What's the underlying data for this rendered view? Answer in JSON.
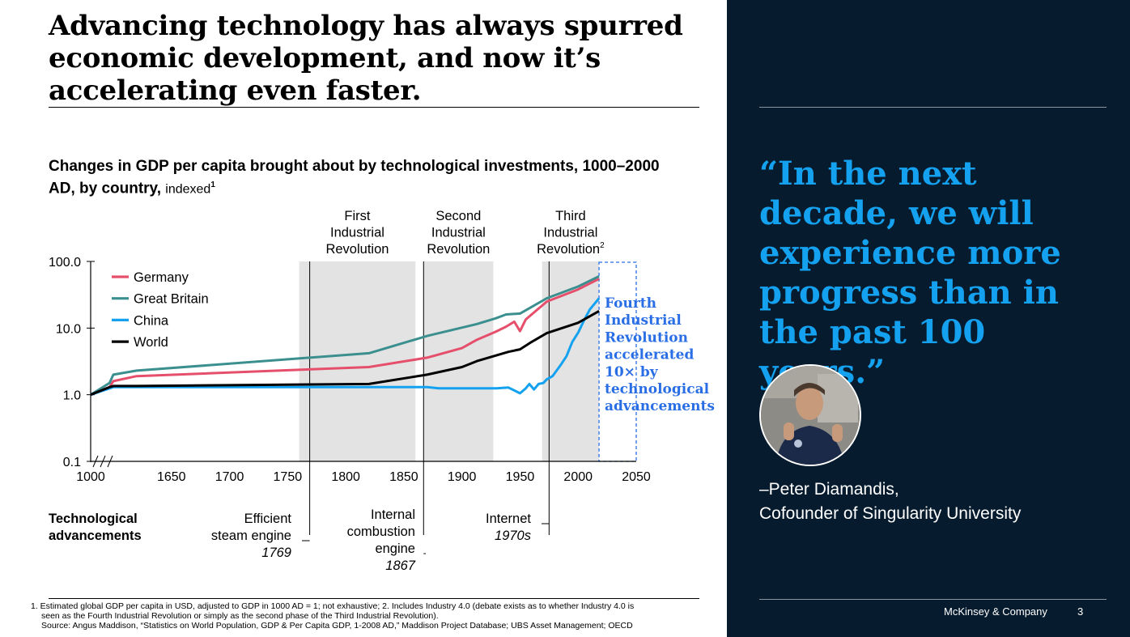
{
  "headline": "Advancing technology has always spurred economic development, and now it’s accelerating even faster.",
  "chart_data": {
    "type": "line",
    "title": "Changes in GDP per capita brought about by technological investments, 1000–2000 AD, by country,",
    "title_suffix": "indexed",
    "title_footnote": "1",
    "yscale": "log",
    "ylim": [
      0.1,
      100
    ],
    "y_ticks": [
      "100.0",
      "10.0",
      "1.0",
      "0.1"
    ],
    "x_ticks": [
      "1000",
      "1650",
      "1700",
      "1750",
      "1800",
      "1850",
      "1900",
      "1950",
      "2000",
      "2050"
    ],
    "axis_break": "1000–1600",
    "legend_position": "top-left",
    "series": [
      {
        "name": "Germany",
        "color": "#e64f6b",
        "points": [
          [
            1000,
            1.0
          ],
          [
            1500,
            1.3
          ],
          [
            1600,
            1.6
          ],
          [
            1620,
            1.9
          ],
          [
            1820,
            2.6
          ],
          [
            1870,
            3.6
          ],
          [
            1900,
            5.0
          ],
          [
            1913,
            6.7
          ],
          [
            1929,
            8.8
          ],
          [
            1938,
            10.5
          ],
          [
            1945,
            12.5
          ],
          [
            1950,
            9.0
          ],
          [
            1955,
            13.5
          ],
          [
            1973,
            25
          ],
          [
            2000,
            38
          ],
          [
            2018,
            55
          ]
        ]
      },
      {
        "name": "Great Britain",
        "color": "#3c8f8f",
        "points": [
          [
            1000,
            1.0
          ],
          [
            1500,
            1.5
          ],
          [
            1600,
            2.0
          ],
          [
            1620,
            2.3
          ],
          [
            1820,
            4.2
          ],
          [
            1870,
            7.6
          ],
          [
            1913,
            11.5
          ],
          [
            1929,
            14
          ],
          [
            1938,
            16
          ],
          [
            1950,
            16.5
          ],
          [
            1955,
            18.5
          ],
          [
            1973,
            28
          ],
          [
            2000,
            42
          ],
          [
            2018,
            60
          ]
        ]
      },
      {
        "name": "China",
        "color": "#14a2f0",
        "points": [
          [
            1000,
            1.0
          ],
          [
            1600,
            1.3
          ],
          [
            1870,
            1.3
          ],
          [
            1880,
            1.25
          ],
          [
            1900,
            1.25
          ],
          [
            1913,
            1.25
          ],
          [
            1930,
            1.25
          ],
          [
            1940,
            1.28
          ],
          [
            1950,
            1.05
          ],
          [
            1955,
            1.25
          ],
          [
            1958,
            1.45
          ],
          [
            1962,
            1.2
          ],
          [
            1966,
            1.45
          ],
          [
            1970,
            1.5
          ],
          [
            1973,
            1.7
          ],
          [
            1978,
            1.9
          ],
          [
            1985,
            2.8
          ],
          [
            1990,
            3.8
          ],
          [
            1995,
            6.2
          ],
          [
            2000,
            8.5
          ],
          [
            2005,
            13
          ],
          [
            2010,
            19
          ],
          [
            2018,
            28
          ]
        ]
      },
      {
        "name": "World",
        "color": "#000000",
        "points": [
          [
            1000,
            1.0
          ],
          [
            1500,
            1.3
          ],
          [
            1600,
            1.35
          ],
          [
            1620,
            1.35
          ],
          [
            1820,
            1.45
          ],
          [
            1870,
            2.0
          ],
          [
            1900,
            2.6
          ],
          [
            1913,
            3.2
          ],
          [
            1940,
            4.4
          ],
          [
            1950,
            4.8
          ],
          [
            1960,
            6.2
          ],
          [
            1973,
            8.4
          ],
          [
            2000,
            12
          ],
          [
            2018,
            18
          ]
        ]
      }
    ],
    "shaded_periods": [
      {
        "label_lines": [
          "First",
          "Industrial",
          "Revolution"
        ],
        "start": 1760,
        "end": 1860
      },
      {
        "label_lines": [
          "Second",
          "Industrial",
          "Revolution"
        ],
        "start": 1867,
        "end": 1927
      },
      {
        "label_lines": [
          "Third",
          "Industrial",
          "Revolution"
        ],
        "footnote": "2",
        "start": 1969,
        "end": 2018
      }
    ],
    "fourth_period": {
      "start": 2018,
      "end": 2050,
      "label_lines": [
        "Fourth",
        "Industrial",
        "Revolution",
        "accelerated",
        "10× by",
        "technological",
        "advancements"
      ]
    },
    "tech_row_label": [
      "Technological",
      "advancements"
    ],
    "tech_events": [
      {
        "name_lines": [
          "Efficient",
          "steam engine"
        ],
        "year_text": "1769",
        "year": 1769
      },
      {
        "name_lines": [
          "Internal",
          "combustion",
          "engine"
        ],
        "year_text": "1867",
        "year": 1867
      },
      {
        "name_lines": [
          "Internet"
        ],
        "year_text": "1970s",
        "year": 1975
      }
    ]
  },
  "quote": "“In the next decade, we will experience more progress than in the past 100 years.”",
  "attribution": [
    "–Peter Diamandis,",
    "Cofounder of Singularity University"
  ],
  "footnotes": [
    "1. Estimated global GDP per capita in USD, adjusted to GDP in 1000 AD = 1; not exhaustive; 2. Includes Industry 4.0 (debate exists as to whether Industry 4.0 is",
    "seen as the Fourth Industrial Revolution or simply as the second phase of the Third Industrial Revolution).",
    "Source: Angus Maddison, “Statistics on World Population, GDP & Per Capita GDP, 1-2008 AD,” Maddison Project Database; UBS Asset Management; OECD"
  ],
  "brand": "McKinsey & Company",
  "page_number": "3",
  "colors": {
    "navy": "#061b2e",
    "quote_blue": "#14a2f0",
    "fourth_blue": "#2a6ee6",
    "shade": "#e3e3e3"
  }
}
